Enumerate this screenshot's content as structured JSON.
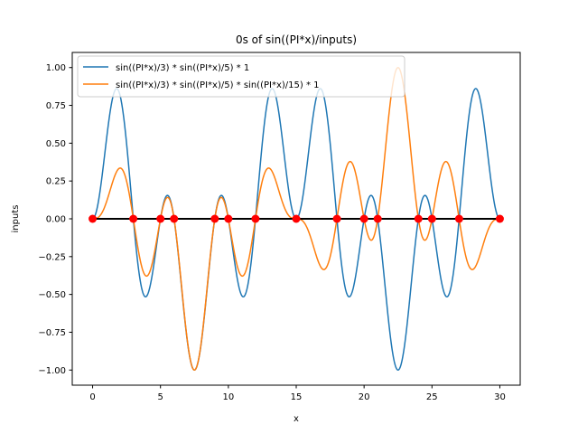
{
  "chart_data": {
    "type": "line",
    "title": "0s of sin((PI*x)/inputs)",
    "xlabel": "x",
    "ylabel": "inputs",
    "xlim": [
      -1.5,
      31.5
    ],
    "ylim": [
      -1.1,
      1.1
    ],
    "x_ticks": [
      0,
      5,
      10,
      15,
      20,
      25,
      30
    ],
    "x_tick_labels": [
      "0",
      "5",
      "10",
      "15",
      "20",
      "25",
      "30"
    ],
    "y_ticks": [
      -1.0,
      -0.75,
      -0.5,
      -0.25,
      0.0,
      0.25,
      0.5,
      0.75,
      1.0
    ],
    "y_tick_labels": [
      "−1.00",
      "−0.75",
      "−0.50",
      "−0.25",
      "0.00",
      "0.25",
      "0.50",
      "0.75",
      "1.00"
    ],
    "grid": false,
    "legend_position": "top-left",
    "x_range": [
      0,
      30
    ],
    "series": [
      {
        "name": "sin((PI*x)/3) * sin((PI*x)/5) * 1",
        "color": "#1f77b4",
        "divisors": [
          3,
          5
        ]
      },
      {
        "name": "sin((PI*x)/3) * sin((PI*x)/5) * sin((PI*x)/15) * 1",
        "color": "#ff7f0e",
        "divisors": [
          3,
          5,
          15
        ]
      }
    ],
    "baseline": {
      "y": 0,
      "color": "#000000"
    },
    "zero_markers": {
      "color": "#ff0000",
      "x": [
        0,
        3,
        5,
        6,
        9,
        10,
        12,
        15,
        18,
        20,
        21,
        24,
        25,
        27,
        30
      ],
      "y": 0
    }
  }
}
